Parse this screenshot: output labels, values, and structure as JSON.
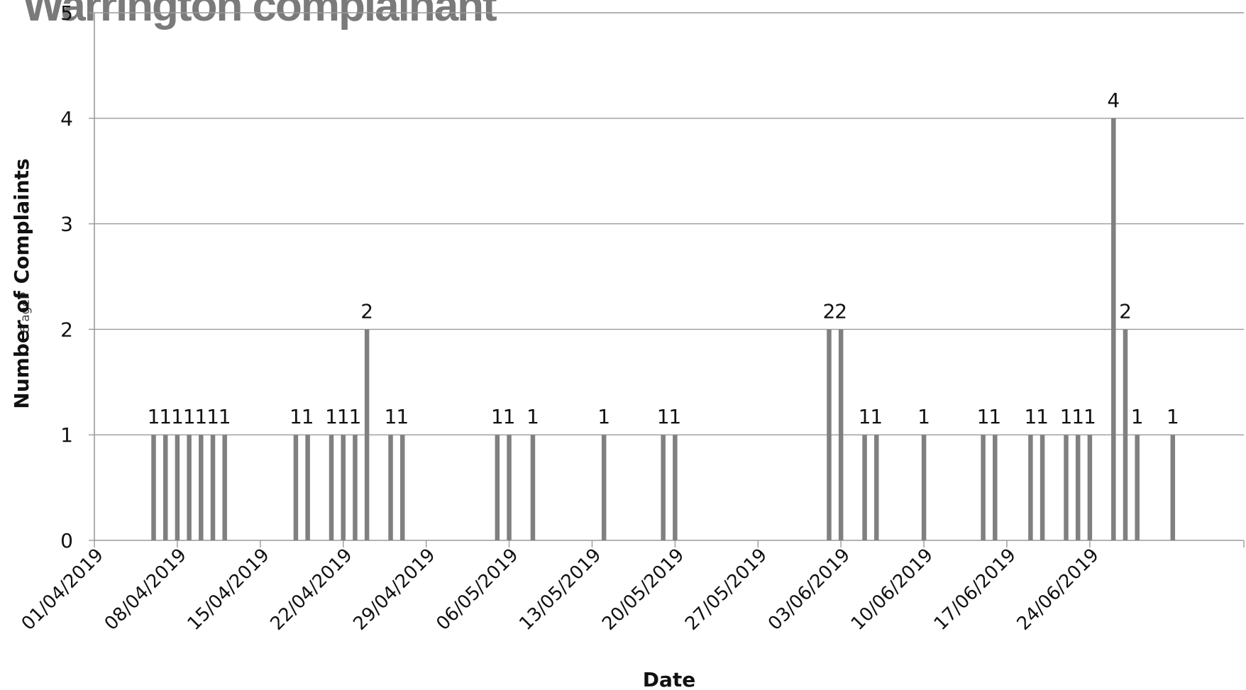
{
  "page": {
    "title_fragment": "Warrington complainant",
    "page_label": "6 ageP"
  },
  "chart_data": {
    "type": "bar",
    "title": "Warrington complainant",
    "xlabel": "Date",
    "ylabel": "Number of Complaints",
    "ylim": [
      0,
      5
    ],
    "yticks": [
      0,
      1,
      2,
      3,
      4,
      5
    ],
    "xlim": [
      "01/04/2019",
      "07/07/2019"
    ],
    "xticks": [
      "01/04/2019",
      "08/04/2019",
      "15/04/2019",
      "22/04/2019",
      "29/04/2019",
      "06/05/2019",
      "13/05/2019",
      "20/05/2019",
      "27/05/2019",
      "03/06/2019",
      "10/06/2019",
      "17/06/2019",
      "24/06/2019"
    ],
    "grid": true,
    "series": [
      {
        "color": "#808080",
        "points": [
          {
            "date": "06/04/2019",
            "value": 1
          },
          {
            "date": "07/04/2019",
            "value": 1
          },
          {
            "date": "08/04/2019",
            "value": 1
          },
          {
            "date": "09/04/2019",
            "value": 1
          },
          {
            "date": "10/04/2019",
            "value": 1
          },
          {
            "date": "11/04/2019",
            "value": 1
          },
          {
            "date": "12/04/2019",
            "value": 1
          },
          {
            "date": "18/04/2019",
            "value": 1
          },
          {
            "date": "19/04/2019",
            "value": 1
          },
          {
            "date": "21/04/2019",
            "value": 1
          },
          {
            "date": "22/04/2019",
            "value": 1
          },
          {
            "date": "23/04/2019",
            "value": 1
          },
          {
            "date": "24/04/2019",
            "value": 2
          },
          {
            "date": "26/04/2019",
            "value": 1
          },
          {
            "date": "27/04/2019",
            "value": 1
          },
          {
            "date": "05/05/2019",
            "value": 1
          },
          {
            "date": "06/05/2019",
            "value": 1
          },
          {
            "date": "08/05/2019",
            "value": 1
          },
          {
            "date": "14/05/2019",
            "value": 1
          },
          {
            "date": "19/05/2019",
            "value": 1
          },
          {
            "date": "20/05/2019",
            "value": 1
          },
          {
            "date": "02/06/2019",
            "value": 2
          },
          {
            "date": "03/06/2019",
            "value": 2
          },
          {
            "date": "05/06/2019",
            "value": 1
          },
          {
            "date": "06/06/2019",
            "value": 1
          },
          {
            "date": "10/06/2019",
            "value": 1
          },
          {
            "date": "15/06/2019",
            "value": 1
          },
          {
            "date": "16/06/2019",
            "value": 1
          },
          {
            "date": "19/06/2019",
            "value": 1
          },
          {
            "date": "20/06/2019",
            "value": 1
          },
          {
            "date": "22/06/2019",
            "value": 1
          },
          {
            "date": "23/06/2019",
            "value": 1
          },
          {
            "date": "24/06/2019",
            "value": 1
          },
          {
            "date": "26/06/2019",
            "value": 4
          },
          {
            "date": "27/06/2019",
            "value": 2
          },
          {
            "date": "28/06/2019",
            "value": 1
          },
          {
            "date": "01/07/2019",
            "value": 1
          }
        ]
      }
    ]
  }
}
